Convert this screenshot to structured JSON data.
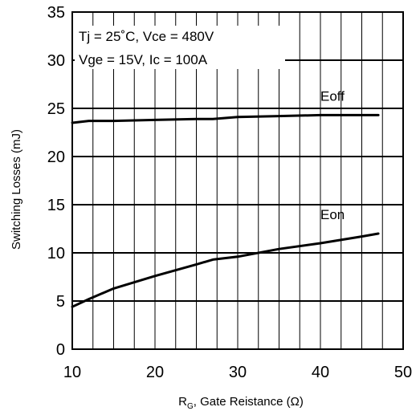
{
  "chart_data": {
    "type": "line",
    "title": "",
    "xlabel_prefix": "R",
    "xlabel_subscript": "G",
    "xlabel_rest": ", Gate Reistance (Ω)",
    "ylabel": "Switching Losses (mJ)",
    "xlim": [
      10,
      50
    ],
    "ylim": [
      0,
      35
    ],
    "x_ticks": [
      "10",
      "20",
      "30",
      "40",
      "50"
    ],
    "y_ticks": [
      "0",
      "5",
      "10",
      "15",
      "20",
      "25",
      "30",
      "35"
    ],
    "grid": true,
    "x_minor_grid_step": 2.5,
    "y_major_grid_step": 5,
    "legend": "none",
    "annotation_lines": [
      "Tj = 25˚C, Vce = 480V",
      "Vge = 15V, Ic = 100A"
    ],
    "series": [
      {
        "name": "Eoff",
        "x": [
          10,
          12,
          15,
          20,
          25,
          27,
          30,
          35,
          40,
          45,
          47
        ],
        "y": [
          23.5,
          23.7,
          23.7,
          23.8,
          23.9,
          23.9,
          24.1,
          24.2,
          24.3,
          24.3,
          24.3
        ]
      },
      {
        "name": "Eon",
        "x": [
          10,
          12,
          15,
          20,
          25,
          27,
          30,
          35,
          40,
          45,
          47
        ],
        "y": [
          4.4,
          5.2,
          6.3,
          7.6,
          8.8,
          9.3,
          9.6,
          10.4,
          11.0,
          11.7,
          12.0
        ]
      }
    ]
  }
}
